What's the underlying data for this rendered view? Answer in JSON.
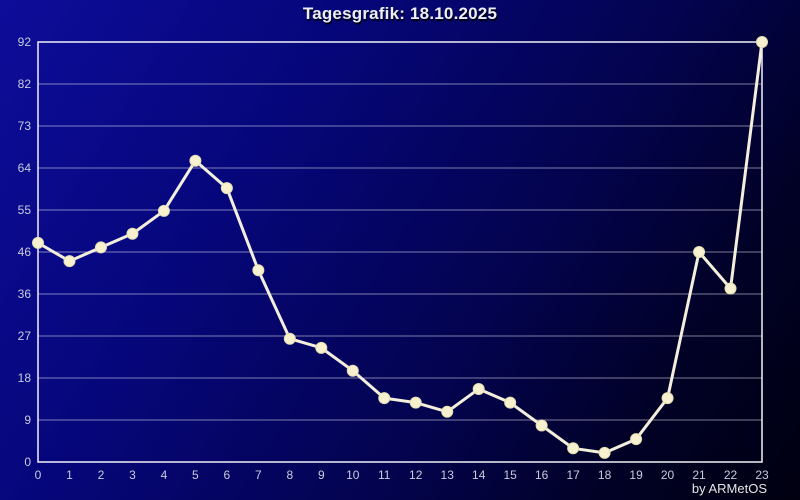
{
  "chart_data": {
    "type": "line",
    "title": "Tagesgrafik: 18.10.2025",
    "x": [
      "0",
      "1",
      "2",
      "3",
      "4",
      "5",
      "6",
      "7",
      "8",
      "9",
      "10",
      "11",
      "12",
      "13",
      "14",
      "15",
      "16",
      "17",
      "18",
      "19",
      "20",
      "21",
      "22",
      "23"
    ],
    "values": [
      48,
      44,
      47,
      50,
      55,
      66,
      60,
      42,
      27,
      25,
      20,
      14,
      13,
      11,
      16,
      13,
      8,
      3,
      2,
      5,
      14,
      46,
      38,
      92
    ],
    "xlabel": "",
    "ylabel": "",
    "ylim": [
      0,
      92
    ],
    "y_tick_labels": [
      "92",
      "82",
      "73",
      "64",
      "55",
      "46",
      "36",
      "27",
      "18",
      "9",
      "0"
    ],
    "grid": true,
    "legend": "none",
    "colors": {
      "background_top_left": "#0d0d9a",
      "background_bottom_right": "#000010",
      "line": "#f4efdc",
      "marker_fill": "#f7f1d0",
      "marker_edge": "#e6deb4",
      "grid_line": "rgba(225,225,240,0.55)",
      "plot_border": "#f2f2f7",
      "tick_text": "#c9ccdc",
      "title_text": "#eceef8"
    }
  },
  "footer": {
    "credit": "by ARMetOS"
  }
}
